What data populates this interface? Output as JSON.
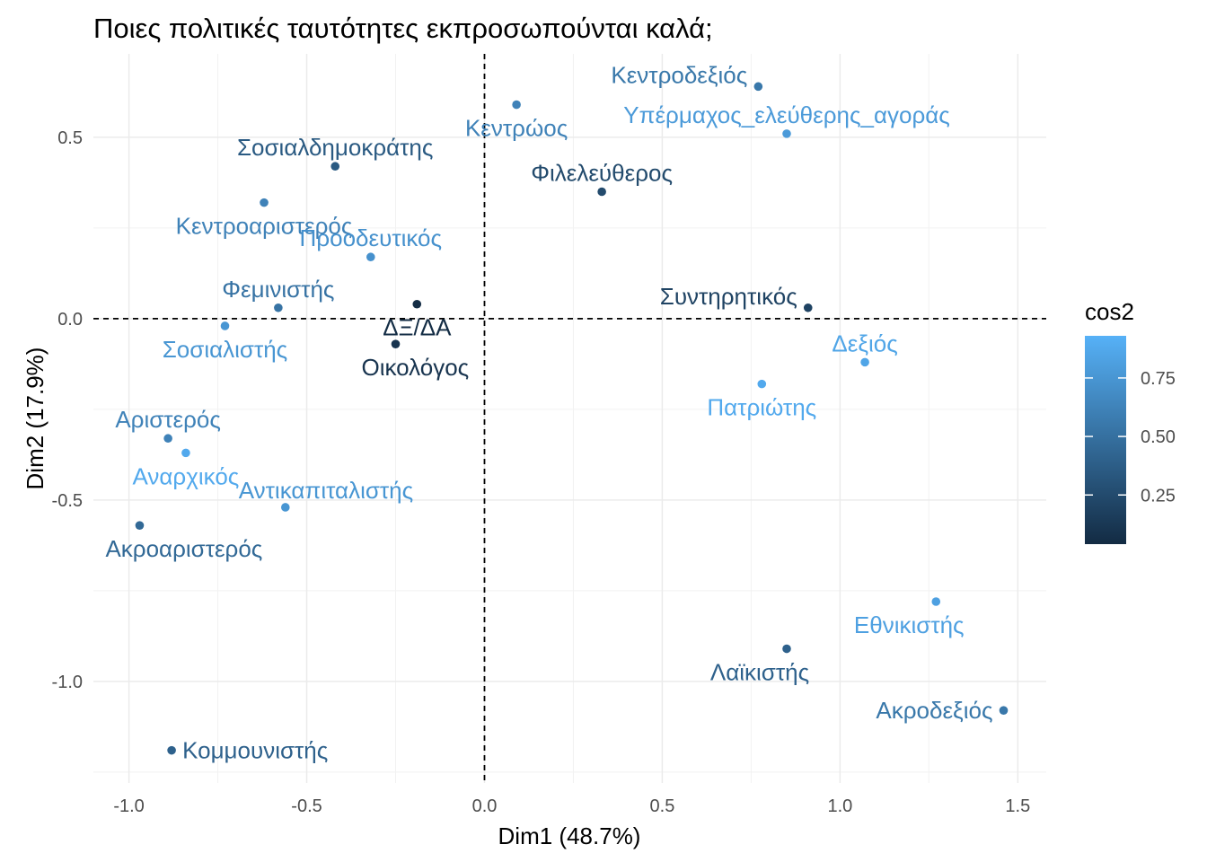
{
  "chart_data": {
    "type": "scatter",
    "title": "Ποιες πολιτικές ταυτότητες εκπροσωπούνται καλά;",
    "xlabel": "Dim1 (48.7%)",
    "ylabel": "Dim2 (17.9%)",
    "xlim": [
      -1.1,
      1.58
    ],
    "ylim": [
      -1.28,
      0.73
    ],
    "xticks": [
      -1.0,
      -0.5,
      0.0,
      0.5,
      1.0,
      1.5
    ],
    "xtick_labels": [
      "-1.0",
      "-0.5",
      "0.0",
      "0.5",
      "1.0",
      "1.5"
    ],
    "yticks": [
      -1.0,
      -0.5,
      0.0,
      0.5
    ],
    "ytick_labels": [
      "-1.0",
      "-0.5",
      "0.0",
      "0.5"
    ],
    "reference_lines": {
      "x": 0,
      "y": 0,
      "style": "dashed"
    },
    "color_legend": {
      "title": "cos2",
      "ticks": [
        0.25,
        0.5,
        0.75
      ],
      "tick_labels": [
        "0.25",
        "0.50",
        "0.75"
      ],
      "range": [
        0.04,
        0.93
      ],
      "low_color": "#132b43",
      "high_color": "#56b1f7"
    },
    "points": [
      {
        "label": "Κεντροδεξιός",
        "x": 0.77,
        "y": 0.64,
        "cos2": 0.55,
        "label_pos": "above-left"
      },
      {
        "label": "Υπέρμαχος_ελεύθερης_αγοράς",
        "x": 0.85,
        "y": 0.51,
        "cos2": 0.78,
        "label_pos": "above"
      },
      {
        "label": "Κεντρώος",
        "x": 0.09,
        "y": 0.59,
        "cos2": 0.62,
        "label_pos": "below"
      },
      {
        "label": "Σοσιαλδημοκράτης",
        "x": -0.42,
        "y": 0.42,
        "cos2": 0.35,
        "label_pos": "above"
      },
      {
        "label": "Φιλελεύθερος",
        "x": 0.33,
        "y": 0.35,
        "cos2": 0.25,
        "label_pos": "above"
      },
      {
        "label": "Κεντροαριστερός",
        "x": -0.62,
        "y": 0.32,
        "cos2": 0.62,
        "label_pos": "below"
      },
      {
        "label": "Προοδευτικός",
        "x": -0.32,
        "y": 0.17,
        "cos2": 0.72,
        "label_pos": "above"
      },
      {
        "label": "Φεμινιστής",
        "x": -0.58,
        "y": 0.03,
        "cos2": 0.52,
        "label_pos": "above"
      },
      {
        "label": "ΔΞ/ΔΑ",
        "x": -0.19,
        "y": 0.04,
        "cos2": 0.05,
        "label_pos": "below-right"
      },
      {
        "label": "Συντηρητικός",
        "x": 0.91,
        "y": 0.03,
        "cos2": 0.2,
        "label_pos": "above-left"
      },
      {
        "label": "Σοσιαλιστής",
        "x": -0.73,
        "y": -0.02,
        "cos2": 0.75,
        "label_pos": "below"
      },
      {
        "label": "Οικολόγος",
        "x": -0.25,
        "y": -0.07,
        "cos2": 0.1,
        "label_pos": "below-right"
      },
      {
        "label": "Δεξιός",
        "x": 1.07,
        "y": -0.12,
        "cos2": 0.85,
        "label_pos": "above"
      },
      {
        "label": "Πατριώτης",
        "x": 0.78,
        "y": -0.18,
        "cos2": 0.88,
        "label_pos": "below"
      },
      {
        "label": "Αριστερός",
        "x": -0.89,
        "y": -0.33,
        "cos2": 0.62,
        "label_pos": "above"
      },
      {
        "label": "Αναρχικός",
        "x": -0.84,
        "y": -0.37,
        "cos2": 0.88,
        "label_pos": "below"
      },
      {
        "label": "Αντικαπιταλιστής",
        "x": -0.56,
        "y": -0.52,
        "cos2": 0.75,
        "label_pos": "above-right"
      },
      {
        "label": "Ακροαριστερός",
        "x": -0.97,
        "y": -0.57,
        "cos2": 0.45,
        "label_pos": "below-right"
      },
      {
        "label": "Εθνικιστής",
        "x": 1.27,
        "y": -0.78,
        "cos2": 0.82,
        "label_pos": "below-left"
      },
      {
        "label": "Λαϊκιστής",
        "x": 0.85,
        "y": -0.91,
        "cos2": 0.4,
        "label_pos": "below-left"
      },
      {
        "label": "Ακροδεξιός",
        "x": 1.46,
        "y": -1.08,
        "cos2": 0.55,
        "label_pos": "left"
      },
      {
        "label": "Κομμουνιστής",
        "x": -0.88,
        "y": -1.19,
        "cos2": 0.4,
        "label_pos": "right"
      }
    ]
  }
}
